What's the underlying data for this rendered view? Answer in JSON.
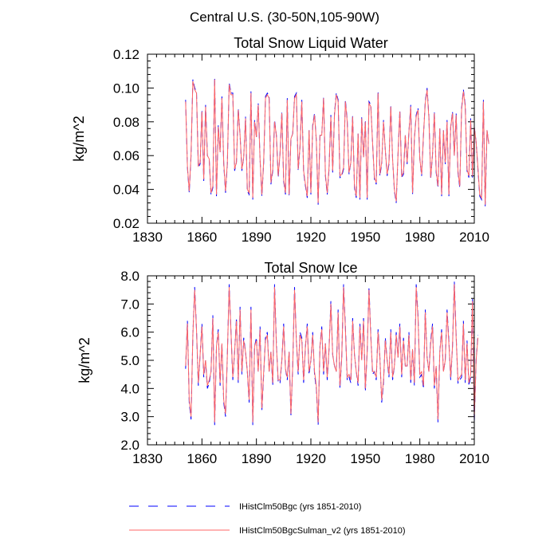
{
  "figure": {
    "main_title": "Central U.S. (30-50N,105-90W)"
  },
  "chart_data": [
    {
      "type": "line",
      "title": "Total Snow Liquid Water",
      "ylabel": "kg/m^2",
      "xlabel": "",
      "xlim": [
        1830,
        2010
      ],
      "ylim": [
        0.02,
        0.12
      ],
      "x_ticks": [
        1830,
        1860,
        1890,
        1920,
        1950,
        1980,
        2010
      ],
      "y_ticks": [
        0.02,
        0.04,
        0.06,
        0.08,
        0.1,
        0.12
      ],
      "y_tick_labels": [
        "0.02",
        "0.04",
        "0.06",
        "0.08",
        "0.10",
        "0.12"
      ],
      "x_start": 1851,
      "series": [
        {
          "color": "#0000ff",
          "style": "dashed",
          "values": [
            0.093,
            0.053,
            0.038,
            0.06,
            0.105,
            0.1,
            0.098,
            0.053,
            0.055,
            0.087,
            0.045,
            0.09,
            0.06,
            0.058,
            0.037,
            0.041,
            0.106,
            0.036,
            0.078,
            0.062,
            0.095,
            0.055,
            0.038,
            0.055,
            0.103,
            0.097,
            0.097,
            0.051,
            0.056,
            0.088,
            0.072,
            0.051,
            0.059,
            0.083,
            0.039,
            0.037,
            0.098,
            0.034,
            0.081,
            0.071,
            0.091,
            0.058,
            0.036,
            0.056,
            0.095,
            0.097,
            0.095,
            0.043,
            0.051,
            0.081,
            0.072,
            0.047,
            0.061,
            0.086,
            0.045,
            0.037,
            0.094,
            0.036,
            0.07,
            0.073,
            0.095,
            0.097,
            0.051,
            0.065,
            0.093,
            0.05,
            0.042,
            0.035,
            0.075,
            0.037,
            0.078,
            0.085,
            0.069,
            0.031,
            0.072,
            0.072,
            0.095,
            0.048,
            0.037,
            0.052,
            0.084,
            0.05,
            0.085,
            0.097,
            0.093,
            0.047,
            0.048,
            0.052,
            0.093,
            0.081,
            0.049,
            0.056,
            0.084,
            0.041,
            0.035,
            0.073,
            0.034,
            0.083,
            0.059,
            0.081,
            0.034,
            0.092,
            0.09,
            0.067,
            0.046,
            0.043,
            0.098,
            0.048,
            0.055,
            0.081,
            0.063,
            0.048,
            0.055,
            0.09,
            0.058,
            0.039,
            0.032,
            0.061,
            0.087,
            0.047,
            0.049,
            0.072,
            0.055,
            0.074,
            0.09,
            0.037,
            0.07,
            0.084,
            0.088,
            0.058,
            0.048,
            0.072,
            0.092,
            0.1,
            0.083,
            0.046,
            0.061,
            0.086,
            0.05,
            0.041,
            0.076,
            0.036,
            0.075,
            0.055,
            0.081,
            0.036,
            0.077,
            0.086,
            0.06,
            0.085,
            0.05,
            0.041,
            0.088,
            0.099,
            0.09,
            0.051,
            0.047,
            0.082,
            0.047,
            0.077,
            0.068,
            0.052,
            0.036,
            0.034,
            0.093,
            0.03,
            0.075,
            0.067
          ]
        },
        {
          "color": "#ff6666",
          "style": "solid",
          "values": [
            0.092,
            0.054,
            0.039,
            0.061,
            0.104,
            0.099,
            0.097,
            0.054,
            0.056,
            0.086,
            0.046,
            0.089,
            0.06,
            0.058,
            0.038,
            0.042,
            0.105,
            0.037,
            0.077,
            0.062,
            0.094,
            0.056,
            0.039,
            0.056,
            0.102,
            0.096,
            0.096,
            0.052,
            0.056,
            0.087,
            0.072,
            0.052,
            0.059,
            0.082,
            0.04,
            0.038,
            0.097,
            0.035,
            0.08,
            0.071,
            0.09,
            0.058,
            0.037,
            0.057,
            0.094,
            0.096,
            0.094,
            0.044,
            0.052,
            0.08,
            0.072,
            0.048,
            0.061,
            0.085,
            0.046,
            0.038,
            0.093,
            0.037,
            0.07,
            0.073,
            0.094,
            0.096,
            0.052,
            0.065,
            0.092,
            0.051,
            0.043,
            0.036,
            0.075,
            0.038,
            0.077,
            0.084,
            0.069,
            0.032,
            0.072,
            0.072,
            0.094,
            0.049,
            0.038,
            0.053,
            0.083,
            0.051,
            0.084,
            0.096,
            0.092,
            0.048,
            0.049,
            0.053,
            0.092,
            0.08,
            0.05,
            0.056,
            0.083,
            0.042,
            0.036,
            0.073,
            0.035,
            0.082,
            0.059,
            0.08,
            0.035,
            0.091,
            0.089,
            0.067,
            0.047,
            0.044,
            0.097,
            0.049,
            0.056,
            0.08,
            0.063,
            0.049,
            0.056,
            0.089,
            0.058,
            0.04,
            0.033,
            0.061,
            0.086,
            0.048,
            0.05,
            0.072,
            0.056,
            0.074,
            0.089,
            0.038,
            0.07,
            0.083,
            0.087,
            0.058,
            0.049,
            0.072,
            0.091,
            0.099,
            0.082,
            0.047,
            0.061,
            0.085,
            0.051,
            0.042,
            0.076,
            0.037,
            0.075,
            0.056,
            0.08,
            0.037,
            0.077,
            0.085,
            0.06,
            0.084,
            0.051,
            0.042,
            0.087,
            0.098,
            0.089,
            0.052,
            0.048,
            0.081,
            0.048,
            0.077,
            0.068,
            0.053,
            0.037,
            0.035,
            0.092,
            0.031,
            0.075,
            0.067
          ]
        }
      ]
    },
    {
      "type": "line",
      "title": "Total Snow Ice",
      "ylabel": "kg/m^2",
      "xlabel": "",
      "xlim": [
        1830,
        2010
      ],
      "ylim": [
        2.0,
        8.0
      ],
      "x_ticks": [
        1830,
        1860,
        1890,
        1920,
        1950,
        1980,
        2010
      ],
      "y_ticks": [
        2.0,
        3.0,
        4.0,
        5.0,
        6.0,
        7.0,
        8.0
      ],
      "y_tick_labels": [
        "2.0",
        "3.0",
        "4.0",
        "5.0",
        "6.0",
        "7.0",
        "8.0"
      ],
      "x_start": 1851,
      "series": [
        {
          "color": "#0000ff",
          "style": "dashed",
          "values": [
            4.7,
            6.4,
            3.5,
            2.9,
            5.9,
            7.6,
            6.1,
            4.1,
            5.2,
            6.3,
            4.4,
            5.0,
            4.0,
            4.2,
            4.6,
            6.6,
            2.7,
            5.5,
            6.1,
            4.1,
            5.6,
            3.5,
            3.0,
            5.2,
            7.7,
            6.0,
            4.3,
            5.3,
            6.5,
            4.2,
            6.9,
            4.5,
            5.8,
            5.3,
            4.6,
            3.5,
            6.9,
            2.7,
            5.5,
            5.8,
            4.6,
            6.2,
            3.2,
            4.5,
            5.8,
            6.0,
            4.6,
            5.3,
            4.1,
            7.7,
            5.6,
            4.2,
            4.2,
            5.0,
            6.3,
            4.7,
            4.3,
            5.3,
            3.0,
            4.8,
            7.6,
            5.7,
            4.5,
            6.0,
            5.8,
            4.2,
            5.5,
            6.3,
            4.5,
            5.0,
            6.0,
            4.5,
            4.0,
            2.7,
            5.5,
            6.2,
            4.5,
            5.6,
            4.3,
            5.4,
            7.1,
            5.2,
            4.8,
            4.6,
            6.8,
            4.0,
            5.1,
            7.7,
            6.2,
            4.3,
            4.4,
            4.2,
            6.5,
            5.2,
            4.6,
            4.1,
            6.3,
            5.0,
            6.5,
            3.9,
            5.3,
            7.6,
            5.9,
            4.5,
            4.6,
            4.3,
            6.1,
            5.1,
            3.5,
            4.2,
            5.8,
            5.0,
            4.4,
            6.1,
            4.3,
            4.8,
            6.0,
            5.1,
            6.3,
            4.4,
            5.8,
            4.8,
            4.8,
            6.0,
            4.2,
            5.4,
            4.1,
            7.7,
            6.6,
            4.4,
            4.5,
            4.0,
            6.8,
            5.1,
            4.6,
            5.7,
            6.3,
            4.0,
            4.8,
            2.8,
            5.3,
            6.1,
            4.6,
            5.0,
            6.8,
            5.7,
            4.3,
            5.5,
            7.8,
            5.9,
            4.2,
            4.3,
            4.4,
            6.4,
            4.2,
            5.7,
            4.1,
            4.4,
            7.2,
            2.8,
            5.0,
            5.9
          ]
        },
        {
          "color": "#ff6666",
          "style": "solid",
          "values": [
            4.8,
            6.3,
            3.6,
            3.0,
            5.9,
            7.5,
            6.1,
            4.2,
            5.2,
            6.2,
            4.5,
            5.0,
            4.1,
            4.3,
            4.6,
            6.5,
            2.8,
            5.5,
            6.0,
            4.2,
            5.6,
            3.6,
            3.1,
            5.2,
            7.6,
            6.0,
            4.4,
            5.3,
            6.4,
            4.3,
            6.8,
            4.6,
            5.7,
            5.3,
            4.6,
            3.6,
            6.8,
            2.8,
            5.5,
            5.7,
            4.6,
            6.1,
            3.3,
            4.6,
            5.7,
            5.9,
            4.6,
            5.3,
            4.2,
            7.6,
            5.5,
            4.3,
            4.3,
            5.0,
            6.2,
            4.7,
            4.4,
            5.3,
            3.1,
            4.8,
            7.5,
            5.7,
            4.6,
            5.9,
            5.7,
            4.3,
            5.5,
            6.2,
            4.6,
            5.0,
            5.9,
            4.6,
            4.1,
            2.8,
            5.5,
            6.1,
            4.6,
            5.6,
            4.4,
            5.4,
            7.0,
            5.2,
            4.8,
            4.6,
            6.7,
            4.1,
            5.1,
            7.6,
            6.1,
            4.4,
            4.5,
            4.3,
            6.4,
            5.2,
            4.6,
            4.2,
            6.2,
            5.0,
            6.4,
            4.0,
            5.3,
            7.5,
            5.8,
            4.6,
            4.6,
            4.4,
            6.0,
            5.1,
            3.6,
            4.3,
            5.7,
            5.0,
            4.5,
            6.0,
            4.4,
            4.8,
            5.9,
            5.1,
            6.2,
            4.5,
            5.7,
            4.8,
            4.8,
            5.9,
            4.3,
            5.4,
            4.2,
            7.6,
            6.5,
            4.5,
            4.6,
            4.1,
            6.7,
            5.1,
            4.6,
            5.6,
            6.2,
            4.1,
            4.8,
            2.9,
            5.3,
            6.0,
            4.6,
            5.0,
            6.7,
            5.6,
            4.4,
            5.5,
            7.7,
            5.8,
            4.3,
            4.4,
            4.5,
            6.3,
            4.3,
            5.6,
            4.2,
            4.5,
            7.1,
            2.9,
            5.0,
            5.8
          ]
        }
      ]
    }
  ],
  "legend": [
    {
      "label": "IHistClm50Bgc (yrs 1851-2010)",
      "color": "#0000ff",
      "style": "dashed"
    },
    {
      "label": "IHistClm50BgcSulman_v2 (yrs 1851-2010)",
      "color": "#ff6666",
      "style": "solid"
    }
  ]
}
